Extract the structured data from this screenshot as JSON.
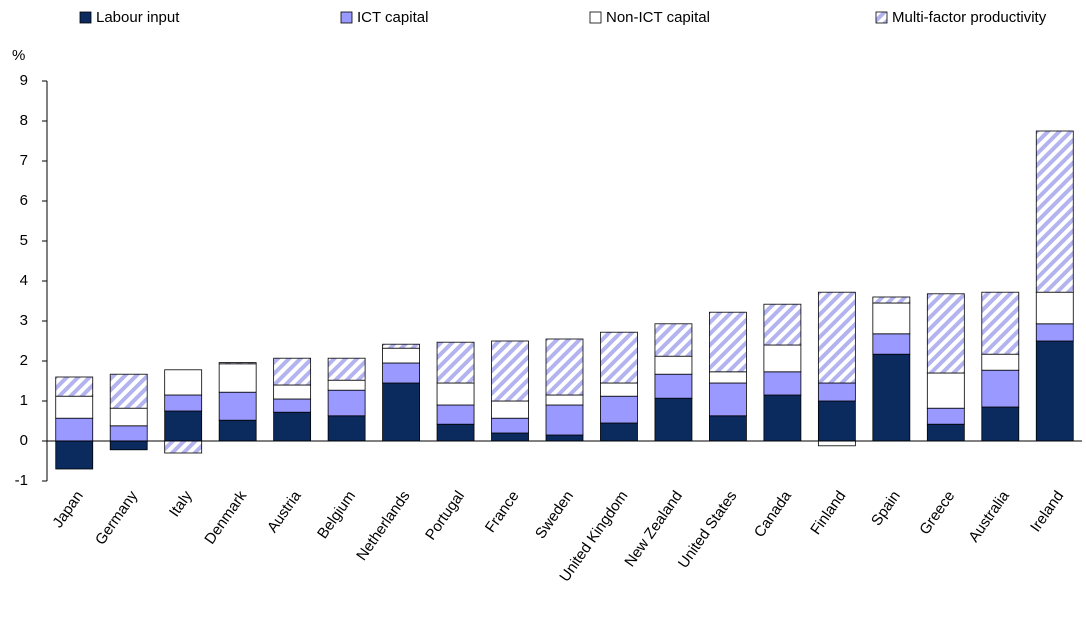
{
  "chart_data": {
    "type": "stacked_bar",
    "y_unit_label": "%",
    "categories": [
      "Japan",
      "Germany",
      "Italy",
      "Denmark",
      "Austria",
      "Belgium",
      "Netherlands",
      "Portugal",
      "France",
      "Sweden",
      "United Kingdom",
      "New Zealand",
      "United States",
      "Canada",
      "Finland",
      "Spain",
      "Greece",
      "Australia",
      "Ireland"
    ],
    "series": [
      {
        "name": "Labour input",
        "color": "#0b2a5e",
        "pattern": "solid",
        "values": [
          -0.7,
          -0.22,
          0.75,
          0.52,
          0.72,
          0.63,
          1.45,
          0.42,
          0.2,
          0.15,
          0.45,
          1.07,
          0.63,
          1.15,
          1.0,
          2.17,
          0.42,
          0.85,
          2.5
        ]
      },
      {
        "name": "ICT capital",
        "color": "#9999ff",
        "pattern": "solid",
        "values": [
          0.57,
          0.38,
          0.4,
          0.7,
          0.33,
          0.64,
          0.5,
          0.48,
          0.37,
          0.75,
          0.67,
          0.6,
          0.82,
          0.58,
          0.45,
          0.51,
          0.4,
          0.92,
          0.43
        ]
      },
      {
        "name": "Non-ICT capital",
        "color": "#ffffff",
        "pattern": "solid",
        "values": [
          0.55,
          0.44,
          0.63,
          0.71,
          0.35,
          0.25,
          0.37,
          0.55,
          0.43,
          0.25,
          0.33,
          0.45,
          0.28,
          0.67,
          -0.12,
          0.77,
          0.88,
          0.4,
          0.79
        ]
      },
      {
        "name": "Multi-factor productivity",
        "color": "#b3b3f0",
        "pattern": "hatch",
        "values": [
          0.48,
          0.85,
          -0.3,
          0.03,
          0.67,
          0.55,
          0.1,
          1.02,
          1.5,
          1.4,
          1.27,
          0.81,
          1.49,
          1.02,
          2.27,
          0.15,
          1.98,
          1.55,
          4.03
        ]
      }
    ],
    "ylim": [
      -1,
      9
    ],
    "yticks": [
      -1,
      0,
      1,
      2,
      3,
      4,
      5,
      6,
      7,
      8,
      9
    ],
    "legend": "top"
  }
}
